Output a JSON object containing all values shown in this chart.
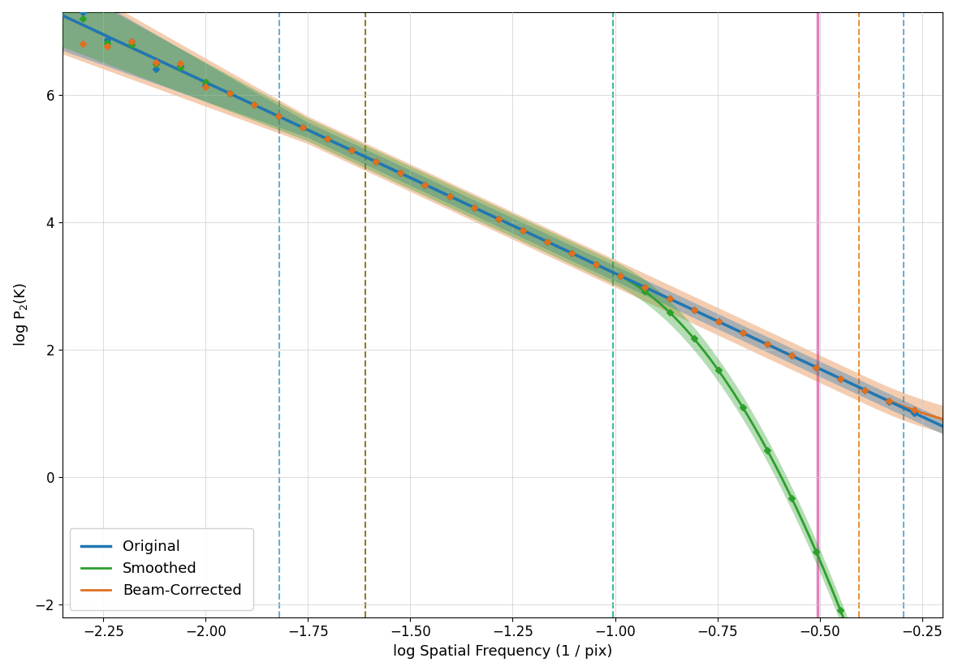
{
  "xlim": [
    -2.35,
    -0.2
  ],
  "ylim": [
    -2.2,
    7.3
  ],
  "xlabel": "log Spatial Frequency (1 / pix)",
  "ylabel": "log P$_2$(K)",
  "figsize": [
    11.8,
    8.27
  ],
  "dpi": 100,
  "slope": -3.0,
  "anchor_x": -2.3,
  "anchor_y": 7.1,
  "n_points": 500,
  "orig_color": "#1f77b4",
  "smooth_color": "#2ca02c",
  "bc_color": "#e07020",
  "vline_blue_x": -1.82,
  "vline_olive_x": -1.61,
  "vline_teal_x": -1.005,
  "vline_pink_x": -0.505,
  "vline_orange_x": -0.405,
  "vline_blue2_x": -0.295,
  "vline_blue_color": "#6baed6",
  "vline_olive_color": "#8c7d2e",
  "vline_teal_color": "#3bb8a0",
  "vline_pink_color": "#e580c0",
  "vline_orange_color": "#e8923a",
  "vline_blue2_color": "#6baed6",
  "smooth_rolloff_x": -1.0,
  "smooth_rolloff_strength": 12.0,
  "bc_noise_x": -0.38,
  "bc_noise_strength": 3.5,
  "fill_band_narrow": 0.12,
  "fill_band_wide_low": 0.55,
  "fill_band_wide_x": -1.75,
  "fill_alpha": 0.35
}
